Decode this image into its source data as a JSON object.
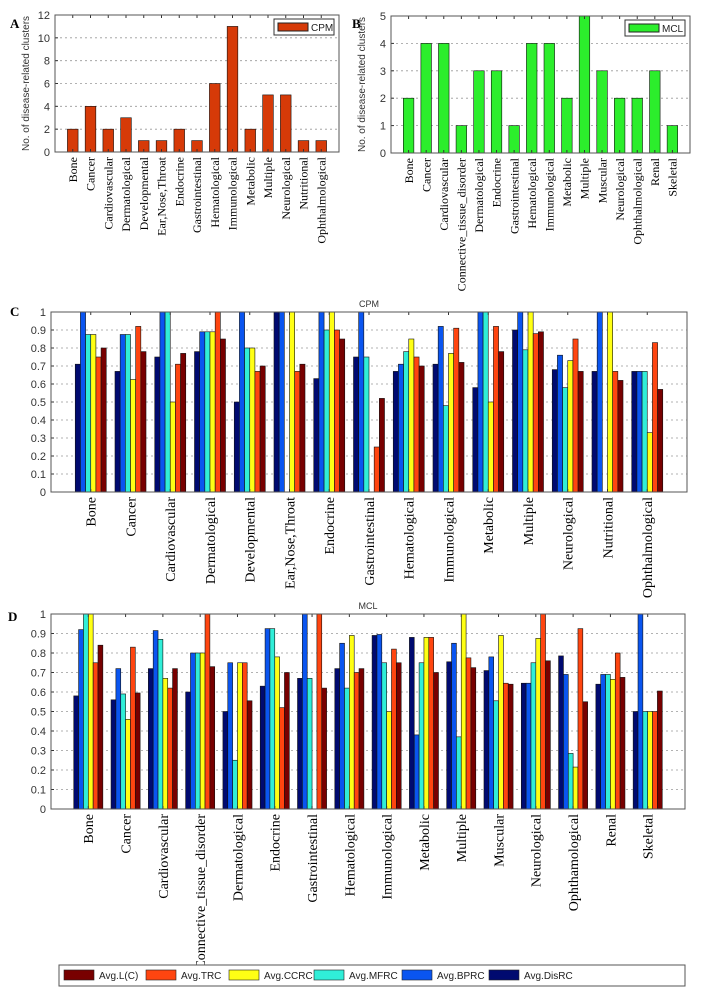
{
  "chart_data": [
    {
      "panel": "A",
      "type": "bar",
      "ylabel": "No. of disease-related clusters",
      "ylim": [
        0,
        12
      ],
      "yticks": [
        0,
        2,
        4,
        6,
        8,
        10,
        12
      ],
      "grid": true,
      "legend": {
        "placement": "top-right",
        "entries": [
          "CPM"
        ]
      },
      "categories": [
        "Bone",
        "Cancer",
        "Cardiovascular",
        "Dermatological",
        "Developmental",
        "Ear,Nose,Throat",
        "Endocrine",
        "Gastrointestinal",
        "Hematological",
        "Immunological",
        "Metabolic",
        "Multiple",
        "Neurological",
        "Nutritional",
        "Ophthalmological"
      ],
      "series": [
        {
          "name": "CPM",
          "color": "#d63a08",
          "values": [
            2,
            4,
            2,
            3,
            1,
            1,
            2,
            1,
            6,
            11,
            2,
            5,
            5,
            1,
            1
          ]
        }
      ]
    },
    {
      "panel": "B",
      "type": "bar",
      "ylabel": "No. of disease-related clusters",
      "ylim": [
        0,
        5
      ],
      "yticks": [
        0,
        1,
        2,
        3,
        4,
        5
      ],
      "grid": true,
      "legend": {
        "placement": "top-right",
        "entries": [
          "MCL"
        ]
      },
      "categories": [
        "Bone",
        "Cancer",
        "Cardiovascular",
        "Connective_tissue_disorder",
        "Dermatological",
        "Endocrine",
        "Gastrointestinal",
        "Hematological",
        "Immunological",
        "Metabolic",
        "Multiple",
        "Muscular",
        "Neurological",
        "Ophthalmological",
        "Renal",
        "Skeletal"
      ],
      "series": [
        {
          "name": "MCL",
          "color": "#2cee2c",
          "values": [
            2,
            4,
            4,
            1,
            3,
            3,
            1,
            4,
            4,
            2,
            5,
            3,
            2,
            2,
            3,
            1
          ]
        }
      ]
    },
    {
      "panel": "C",
      "type": "bar",
      "title": "CPM",
      "ylim": [
        0,
        1
      ],
      "yticks": [
        0,
        0.1,
        0.2,
        0.3,
        0.4,
        0.5,
        0.6,
        0.7,
        0.8,
        0.9,
        1
      ],
      "grid": true,
      "categories": [
        "Bone",
        "Cancer",
        "Cardiovascular",
        "Dermatological",
        "Developmental",
        "Ear,Nose,Throat",
        "Endocrine",
        "Gastrointestinal",
        "Hematological",
        "Immunological",
        "Metabolic",
        "Multiple",
        "Neurological",
        "Nutritional",
        "Ophthalmological"
      ],
      "series": [
        {
          "name": "Avg.DisRC",
          "color": "#000a70",
          "values": [
            0.71,
            0.67,
            0.75,
            0.78,
            0.5,
            1,
            0.63,
            0.75,
            0.67,
            0.71,
            0.58,
            0.9,
            0.68,
            0.67,
            0.67
          ]
        },
        {
          "name": "Avg.BPRC",
          "color": "#0a55f0",
          "values": [
            1,
            0.875,
            1,
            0.89,
            1,
            1,
            1,
            1,
            0.71,
            0.92,
            1,
            1,
            0.76,
            1,
            0.67
          ]
        },
        {
          "name": "Avg.MFRC",
          "color": "#30eed8",
          "values": [
            0.875,
            0.875,
            1,
            0.89,
            0.8,
            0,
            0.9,
            0.75,
            0.78,
            0.48,
            1,
            0.79,
            0.58,
            0,
            0.67
          ]
        },
        {
          "name": "Avg.CCRC",
          "color": "#ffff14",
          "values": [
            0.875,
            0.625,
            0.5,
            0.89,
            0.8,
            1,
            1,
            0,
            0.85,
            0.77,
            0.5,
            1,
            0.73,
            1,
            0.33
          ]
        },
        {
          "name": "Avg.TRC",
          "color": "#ff4510",
          "values": [
            0.75,
            0.92,
            0.71,
            1,
            0.67,
            0.67,
            0.9,
            0.25,
            0.75,
            0.91,
            0.92,
            0.88,
            0.85,
            0.67,
            0.83
          ]
        },
        {
          "name": "Avg.L(C)",
          "color": "#780000",
          "values": [
            0.8,
            0.78,
            0.77,
            0.85,
            0.7,
            0.71,
            0.85,
            0.52,
            0.7,
            0.72,
            0.78,
            0.89,
            0.67,
            0.62,
            0.57
          ]
        }
      ]
    },
    {
      "panel": "D",
      "type": "bar",
      "title": "MCL",
      "ylim": [
        0,
        1
      ],
      "yticks": [
        0,
        0.1,
        0.2,
        0.3,
        0.4,
        0.5,
        0.6,
        0.7,
        0.8,
        0.9,
        1
      ],
      "grid": true,
      "legend": {
        "placement": "bottom",
        "entries": [
          "Avg.L(C)",
          "Avg.TRC",
          "Avg.CCRC",
          "Avg.MFRC",
          "Avg.BPRC",
          "Avg.DisRC"
        ]
      },
      "categories": [
        "Bone",
        "Cancer",
        "Cardiovascular",
        "Connective_tissue_disorder",
        "Dermatological",
        "Endocrine",
        "Gastrointestinal",
        "Hematological",
        "Immunological",
        "Metabolic",
        "Multiple",
        "Muscular",
        "Neurological",
        "Ophthamological",
        "Renal",
        "Skeletal"
      ],
      "series": [
        {
          "name": "Avg.DisRC",
          "color": "#000a70",
          "values": [
            0.58,
            0.56,
            0.72,
            0.6,
            0.5,
            0.63,
            0.67,
            0.72,
            0.89,
            0.88,
            0.755,
            0.71,
            0.645,
            0.785,
            0.64,
            0.5
          ]
        },
        {
          "name": "Avg.BPRC",
          "color": "#0a55f0",
          "values": [
            0.92,
            0.72,
            0.915,
            0.8,
            0.75,
            0.925,
            1,
            0.85,
            0.895,
            0.38,
            0.85,
            0.78,
            0.645,
            0.69,
            0.69,
            1
          ]
        },
        {
          "name": "Avg.MFRC",
          "color": "#30eed8",
          "values": [
            1,
            0.59,
            0.87,
            0.8,
            0.25,
            0.925,
            0.67,
            0.62,
            0.75,
            0.75,
            0.37,
            0.555,
            0.75,
            0.285,
            0.69,
            0.5
          ]
        },
        {
          "name": "Avg.CCRC",
          "color": "#ffff14",
          "values": [
            1,
            0.46,
            0.67,
            0.8,
            0.75,
            0.78,
            0,
            0.89,
            0.5,
            0.88,
            1,
            0.89,
            0.875,
            0.215,
            0.665,
            0.5
          ]
        },
        {
          "name": "Avg.TRC",
          "color": "#ff4510",
          "values": [
            0.75,
            0.83,
            0.62,
            1,
            0.75,
            0.52,
            1,
            0.7,
            0.82,
            0.88,
            0.775,
            0.645,
            1,
            0.925,
            0.8,
            0.5
          ]
        },
        {
          "name": "Avg.L(C)",
          "color": "#780000",
          "values": [
            0.84,
            0.595,
            0.72,
            0.73,
            0.555,
            0.7,
            0.62,
            0.72,
            0.75,
            0.7,
            0.725,
            0.64,
            0.76,
            0.55,
            0.675,
            0.605
          ]
        }
      ]
    }
  ]
}
